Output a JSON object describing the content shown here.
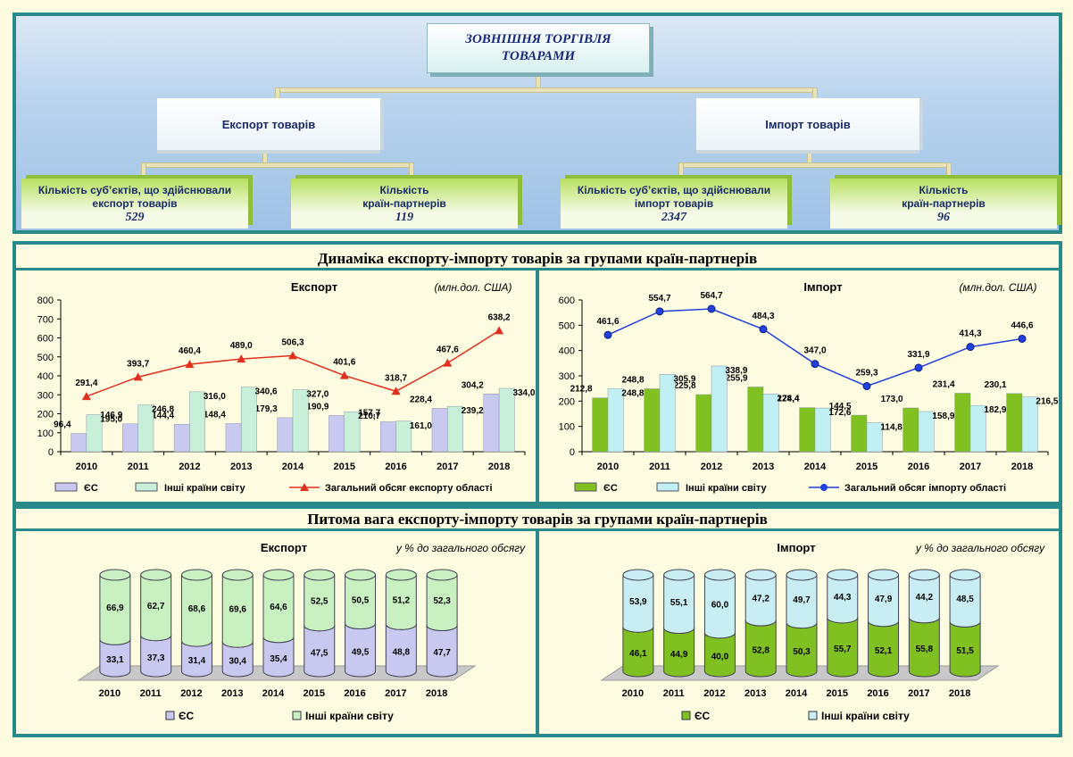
{
  "org": {
    "title_line1": "ЗОВНІШНЯ ТОРГІВЛЯ",
    "title_line2": "ТОВАРАМИ",
    "export_label": "Експорт товарів",
    "import_label": "Імпорт товарів",
    "exp_subjects_line1": "Кількість суб’єктів, що здійснювали",
    "exp_subjects_line2": "експорт товарів",
    "exp_subjects_value": "529",
    "exp_countries_line1": "Кількість",
    "exp_countries_line2": "країн-партнерів",
    "exp_countries_value": "119",
    "imp_subjects_line1": "Кількість суб’єктів, що здійснювали",
    "imp_subjects_line2": "імпорт товарів",
    "imp_subjects_value": "2347",
    "imp_countries_line1": "Кількість",
    "imp_countries_line2": "країн-партнерів",
    "imp_countries_value": "96"
  },
  "sections": {
    "dynamics_title": "Динаміка експорту-імпорту товарів за групами країн-партнерів",
    "share_title": "Питома вага експорту-імпорту товарів за групами країн-партнерів"
  },
  "chart_data": [
    {
      "type": "bar",
      "title": "Експорт",
      "unit": "(млн.дол. США)",
      "categories": [
        "2010",
        "2011",
        "2012",
        "2013",
        "2014",
        "2015",
        "2016",
        "2017",
        "2018"
      ],
      "ylim": [
        0,
        800
      ],
      "yticks": [
        0,
        100,
        200,
        300,
        400,
        500,
        600,
        700,
        800
      ],
      "series": [
        {
          "name": "ЄС",
          "kind": "bar",
          "color": "#c8c8f0",
          "values": [
            96.4,
            146.9,
            144.4,
            148.4,
            179.3,
            190.9,
            157.7,
            228.4,
            304.2
          ]
        },
        {
          "name": "Інші країни світу",
          "kind": "bar",
          "color": "#c8f0d8",
          "values": [
            195.0,
            246.8,
            316.0,
            340.6,
            327.0,
            210.7,
            161.0,
            239.2,
            334.0
          ]
        },
        {
          "name": "Загальний обсяг експорту області",
          "kind": "line",
          "color": "#e03020",
          "marker": "triangle",
          "values": [
            291.4,
            393.7,
            460.4,
            489.0,
            506.3,
            401.6,
            318.7,
            467.6,
            638.2
          ]
        }
      ]
    },
    {
      "type": "bar",
      "title": "Імпорт",
      "unit": "(млн.дол. США)",
      "categories": [
        "2010",
        "2011",
        "2012",
        "2013",
        "2014",
        "2015",
        "2016",
        "2017",
        "2018"
      ],
      "ylim": [
        0,
        600
      ],
      "yticks": [
        0,
        100,
        200,
        300,
        400,
        500,
        600
      ],
      "series": [
        {
          "name": "ЄС",
          "kind": "bar",
          "color": "#80c020",
          "values": [
            212.8,
            248.8,
            225.8,
            255.9,
            174.4,
            144.5,
            173.0,
            231.4,
            230.1
          ]
        },
        {
          "name": "Інші країни світу",
          "kind": "bar",
          "color": "#c0f0f4",
          "values": [
            248.8,
            305.9,
            338.9,
            228.4,
            172.6,
            114.8,
            158.9,
            182.9,
            216.5
          ]
        },
        {
          "name": "Загальний обсяг імпорту області",
          "kind": "line",
          "color": "#2040e0",
          "marker": "circle",
          "values": [
            461.6,
            554.7,
            564.7,
            484.3,
            347.0,
            259.3,
            331.9,
            414.3,
            446.6
          ]
        }
      ]
    },
    {
      "type": "bar",
      "stacked": true,
      "title": "Експорт",
      "unit": "у % до загального обсягу",
      "categories": [
        "2010",
        "2011",
        "2012",
        "2013",
        "2014",
        "2015",
        "2016",
        "2017",
        "2018"
      ],
      "series": [
        {
          "name": "ЄС",
          "color": "#c8c8f0",
          "values": [
            33.1,
            37.3,
            31.4,
            30.4,
            35.4,
            47.5,
            49.5,
            48.8,
            47.7
          ]
        },
        {
          "name": "Інші країни світу",
          "color": "#c8f0c0",
          "values": [
            66.9,
            62.7,
            68.6,
            69.6,
            64.6,
            52.5,
            50.5,
            51.2,
            52.3
          ]
        }
      ]
    },
    {
      "type": "bar",
      "stacked": true,
      "title": "Імпорт",
      "unit": "у % до загального обсягу",
      "categories": [
        "2010",
        "2011",
        "2012",
        "2013",
        "2014",
        "2015",
        "2016",
        "2017",
        "2018"
      ],
      "series": [
        {
          "name": "ЄС",
          "color": "#80c020",
          "values": [
            46.1,
            44.9,
            40.0,
            52.8,
            50.3,
            55.7,
            52.1,
            55.8,
            51.5
          ]
        },
        {
          "name": "Інші країни світу",
          "color": "#c8eef4",
          "values": [
            53.9,
            55.1,
            60.0,
            47.2,
            49.7,
            44.3,
            47.9,
            44.2,
            48.5
          ]
        }
      ]
    }
  ]
}
